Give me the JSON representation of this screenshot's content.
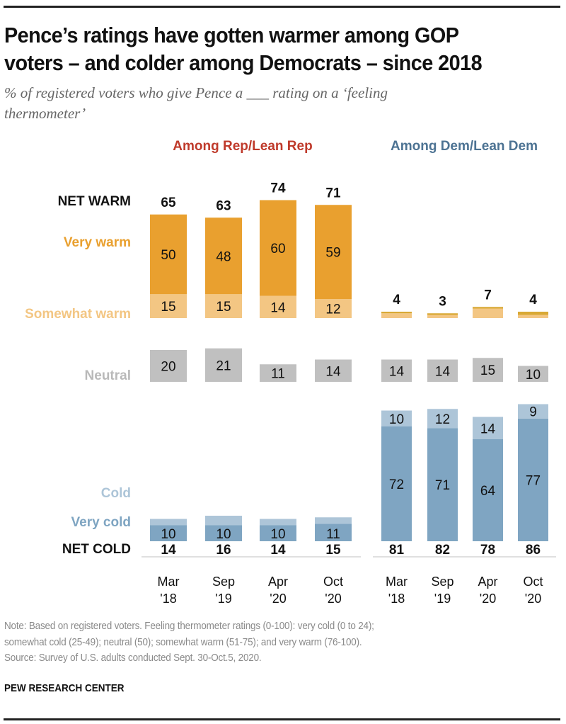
{
  "header": {
    "title_line1": "Pence’s ratings have gotten warmer among GOP",
    "title_line2": "voters – and colder among Democrats – since 2018",
    "subtitle_line1": "% of registered voters who give Pence a ___ rating on a ‘feeling",
    "subtitle_line2": "thermometer’"
  },
  "footer": {
    "note_line1": "Note: Based on registered voters. Feeling thermometer ratings (0-100): very cold (0 to 24);",
    "note_line2": "somewhat cold (25-49); neutral (50); somewhat warm (51-75); and very warm (76-100).",
    "source": "Source: Survey of U.S. adults conducted Sept. 30-Oct.5, 2020.",
    "brand": "PEW RESEARCH CENTER"
  },
  "colors": {
    "very_warm": "#E9A02F",
    "somewhat_warm": "#F3C683",
    "neutral": "#C0C0C0",
    "cold": "#ADC5D8",
    "very_cold": "#7FA5C2",
    "rep_title": "#BF3A2B",
    "dem_title": "#4D7393",
    "net_text": "#111111",
    "neutral_label": "#B9B9B9",
    "baseline": "#D6D6D6"
  },
  "chart_data": {
    "type": "bar",
    "stacked": true,
    "title": "Pence’s ratings have gotten warmer among GOP voters – and colder among Democrats – since 2018",
    "ylabel": "% of registered voters",
    "categories": [
      "Mar '18",
      "Sep '19",
      "Apr '20",
      "Oct '20"
    ],
    "category_lines": [
      [
        "Mar",
        "'18"
      ],
      [
        "Sep",
        "'19"
      ],
      [
        "Apr",
        "'20"
      ],
      [
        "Oct",
        "'20"
      ]
    ],
    "row_labels": {
      "net_warm": "NET WARM",
      "very_warm": "Very warm",
      "somewhat_warm": "Somewhat warm",
      "neutral": "Neutral",
      "cold": "Cold",
      "very_cold": "Very cold",
      "net_cold": "NET COLD"
    },
    "panels": [
      {
        "name": "Among Rep/Lean Rep",
        "net_warm": [
          65,
          63,
          74,
          71
        ],
        "very_warm": [
          50,
          48,
          60,
          59
        ],
        "somewhat_warm": [
          15,
          15,
          14,
          12
        ],
        "neutral": [
          20,
          21,
          11,
          14
        ],
        "cold": [
          4,
          6,
          4,
          4
        ],
        "very_cold": [
          10,
          10,
          10,
          11
        ],
        "net_cold": [
          14,
          16,
          14,
          15
        ],
        "show_segment_labels": true
      },
      {
        "name": "Among Dem/Lean Dem",
        "net_warm": [
          4,
          3,
          7,
          4
        ],
        "very_warm": [
          1,
          1,
          1,
          2
        ],
        "somewhat_warm": [
          3,
          2,
          6,
          2
        ],
        "neutral": [
          14,
          14,
          15,
          10
        ],
        "cold": [
          10,
          12,
          14,
          9
        ],
        "very_cold": [
          72,
          71,
          64,
          77
        ],
        "net_cold": [
          81,
          82,
          78,
          86
        ],
        "show_segment_labels": true
      }
    ]
  }
}
